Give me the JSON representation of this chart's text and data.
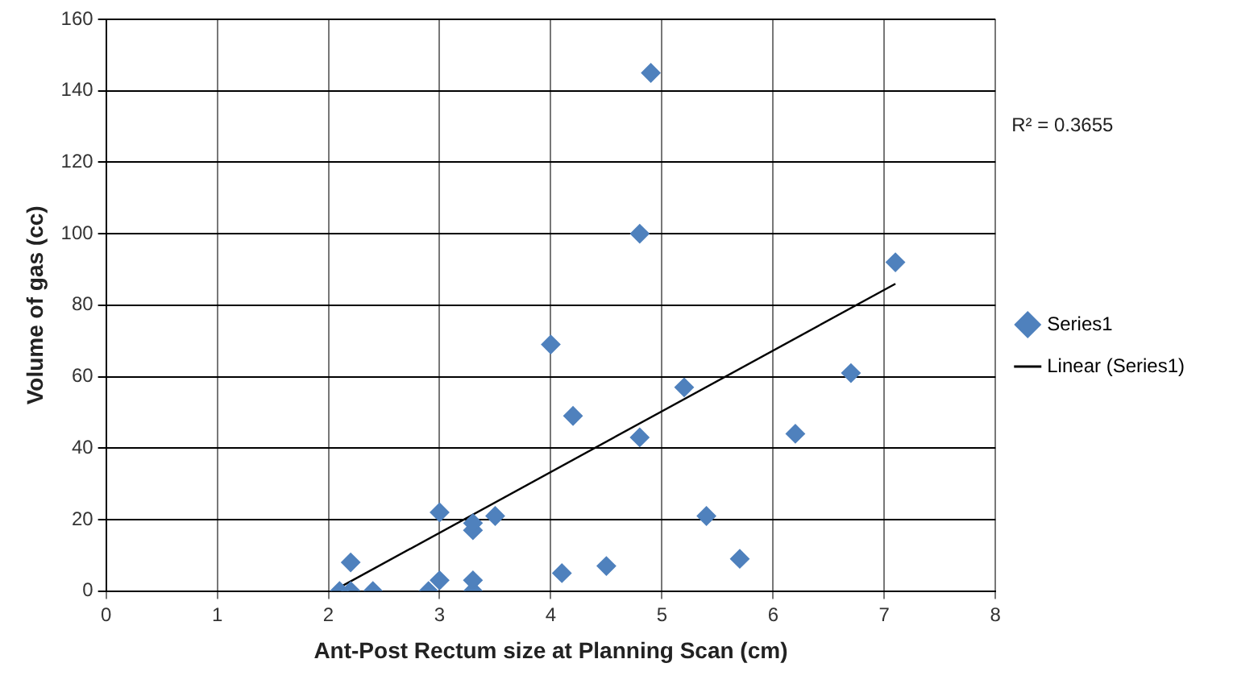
{
  "chart_data": {
    "type": "scatter",
    "xlabel": "Ant-Post Rectum size at Planning Scan (cm)",
    "ylabel": "Volume of gas (cc)",
    "x": [
      2.1,
      2.2,
      2.2,
      2.4,
      2.9,
      3.0,
      3.0,
      3.3,
      3.3,
      3.3,
      3.3,
      3.5,
      4.0,
      4.1,
      4.2,
      4.5,
      4.8,
      4.8,
      4.9,
      5.2,
      5.4,
      5.7,
      6.2,
      6.7,
      7.1
    ],
    "series": [
      {
        "name": "Series1",
        "color": "#4f81bd",
        "marker": "diamond",
        "values": [
          0,
          0,
          8,
          0,
          0,
          3,
          22,
          0,
          3,
          17,
          19,
          21,
          69,
          5,
          49,
          7,
          43,
          100,
          145,
          57,
          21,
          9,
          44,
          61,
          92
        ]
      },
      {
        "name": "Linear (Series1)",
        "type": "line",
        "color": "#000000",
        "marker": "none",
        "x": [
          2.1,
          7.1
        ],
        "values": [
          1,
          86
        ]
      }
    ],
    "xlim": [
      0,
      8
    ],
    "xticks": [
      0,
      1,
      2,
      3,
      4,
      5,
      6,
      7,
      8
    ],
    "ylim": [
      0,
      160
    ],
    "yticks": [
      0,
      20,
      40,
      60,
      80,
      100,
      120,
      140,
      160
    ],
    "grid": true,
    "legend": "right",
    "annotations": [
      "R² = 0.3655"
    ]
  }
}
